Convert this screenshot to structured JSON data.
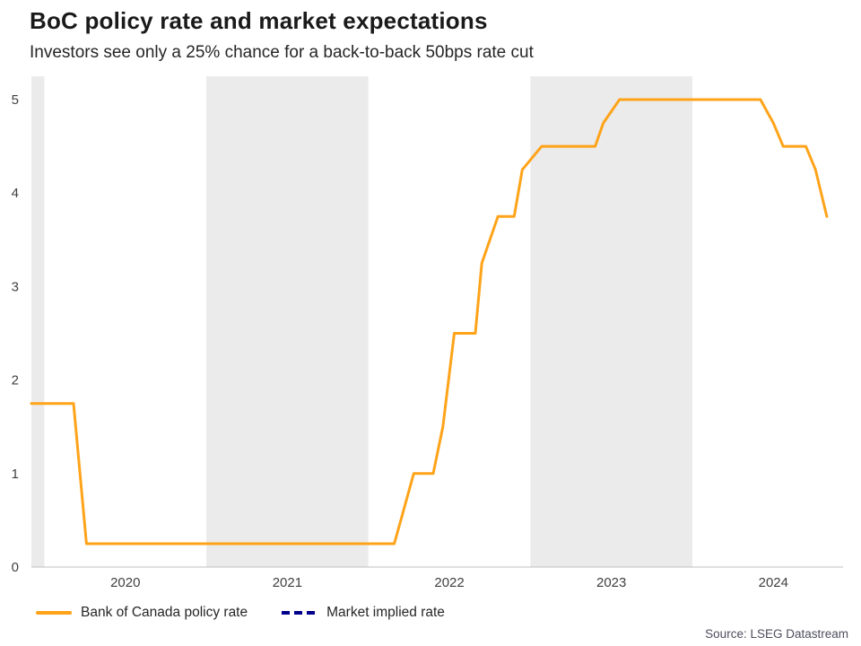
{
  "header": {
    "title": "BoC policy rate and market expectations",
    "subtitle": "Investors see only a 25% chance for a back-to-back 50bps rate cut"
  },
  "source": "Source: LSEG Datastream",
  "legend": [
    {
      "label": "Bank of Canada policy rate",
      "color": "#FFA319",
      "style": "solid"
    },
    {
      "label": "Market implied rate",
      "color": "#00008B",
      "style": "dashed"
    }
  ],
  "chart_data": {
    "type": "line",
    "title": "BoC policy rate and market expectations",
    "subtitle": "Investors see only a 25% chance for a back-to-back 50bps rate cut",
    "ylabel": "",
    "xlabel": "",
    "x_range": [
      2019.92,
      2024.93
    ],
    "y_range": [
      0,
      5.25
    ],
    "grid": false,
    "legend_position": "bottom-left",
    "band_color": "#EBEBEB",
    "axis_color": "#BFBFBF",
    "tick_color": "#404040",
    "yticks": [
      {
        "label": "0",
        "value": 0
      },
      {
        "label": "1",
        "value": 1
      },
      {
        "label": "2",
        "value": 2
      },
      {
        "label": "3",
        "value": 3
      },
      {
        "label": "4",
        "value": 4
      },
      {
        "label": "5",
        "value": 5
      }
    ],
    "xticks": [
      {
        "label": "2020",
        "x": 2020.5
      },
      {
        "label": "2021",
        "x": 2021.5
      },
      {
        "label": "2022",
        "x": 2022.5
      },
      {
        "label": "2023",
        "x": 2023.5
      },
      {
        "label": "2024",
        "x": 2024.5
      }
    ],
    "shaded_year_bands": [
      [
        2019.92,
        2020.0
      ],
      [
        2021.0,
        2022.0
      ],
      [
        2023.0,
        2024.0
      ]
    ],
    "series": [
      {
        "id": "policy-rate-line",
        "name": "Bank of Canada policy rate",
        "color": "#FFA319",
        "dash": "",
        "width": 3,
        "points": [
          [
            2019.92,
            1.75
          ],
          [
            2020.18,
            1.75
          ],
          [
            2020.26,
            0.25
          ],
          [
            2022.16,
            0.25
          ],
          [
            2022.2,
            0.5
          ],
          [
            2022.28,
            1.0
          ],
          [
            2022.4,
            1.0
          ],
          [
            2022.46,
            1.5
          ],
          [
            2022.53,
            2.5
          ],
          [
            2022.66,
            2.5
          ],
          [
            2022.7,
            3.25
          ],
          [
            2022.8,
            3.75
          ],
          [
            2022.9,
            3.75
          ],
          [
            2022.95,
            4.25
          ],
          [
            2023.07,
            4.5
          ],
          [
            2023.4,
            4.5
          ],
          [
            2023.45,
            4.75
          ],
          [
            2023.55,
            5.0
          ],
          [
            2024.42,
            5.0
          ],
          [
            2024.5,
            4.75
          ],
          [
            2024.56,
            4.5
          ],
          [
            2024.7,
            4.5
          ],
          [
            2024.76,
            4.25
          ],
          [
            2024.83,
            3.75
          ]
        ]
      },
      {
        "id": "market-implied-line",
        "name": "Market implied rate",
        "color": "#00008B",
        "dash": "7 5",
        "width": 3,
        "points": []
      }
    ]
  }
}
